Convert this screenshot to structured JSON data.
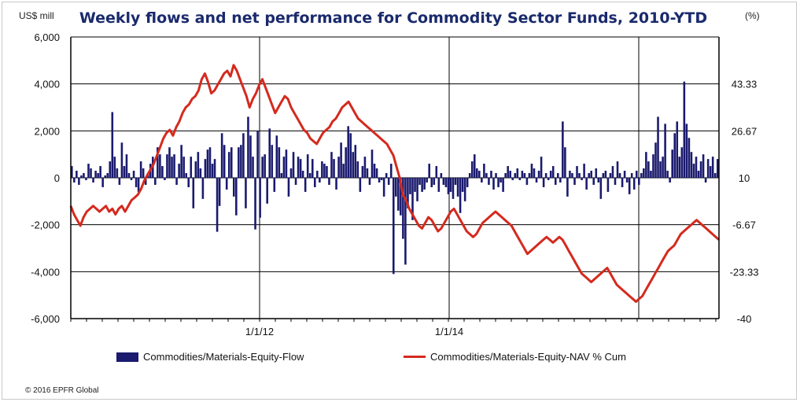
{
  "title": "Weekly flows and net performance for Commodity Sector Funds, 2010-YTD",
  "left_unit": "US$ mill",
  "right_unit": "(%)",
  "copyright": "© 2016 EPFR Global",
  "colors": {
    "bars": "#1a1a6e",
    "line": "#d42a1e",
    "grid": "#000000"
  },
  "chart_data": {
    "type": "bar+line",
    "title": "Weekly flows and net performance for Commodity Sector Funds, 2010-YTD",
    "x_ticks": [
      "1/1/12",
      "1/1/14"
    ],
    "y_left": {
      "label": "US$ mill",
      "range": [
        -6000,
        6000
      ],
      "ticks": [
        "6,000",
        "4,000",
        "2,000",
        "0",
        "-2,000",
        "-4,000",
        "-6,000"
      ]
    },
    "y_right": {
      "label": "(%)",
      "range": [
        -40,
        60
      ],
      "ticks": [
        "43.33",
        "26.67",
        "10",
        "-6.67",
        "-23.33",
        "-40"
      ]
    },
    "legend": [
      "Commodities/Materials-Equity-Flow",
      "Commodities/Materials-Equity-NAV % Cum"
    ],
    "series": [
      {
        "name": "Commodities/Materials-Equity-Flow",
        "type": "bar",
        "axis": "left",
        "values": [
          500,
          -200,
          300,
          -300,
          100,
          200,
          -100,
          600,
          400,
          -200,
          300,
          200,
          500,
          -400,
          100,
          200,
          700,
          2800,
          900,
          400,
          -300,
          1500,
          500,
          1000,
          200,
          -100,
          300,
          -400,
          -600,
          700,
          400,
          -300,
          200,
          600,
          900,
          -300,
          1300,
          1000,
          500,
          -100,
          1000,
          1300,
          900,
          1000,
          -300,
          600,
          1400,
          900,
          200,
          -400,
          900,
          -1300,
          700,
          1100,
          400,
          -900,
          800,
          1200,
          1300,
          600,
          800,
          -2300,
          -1200,
          1900,
          1400,
          -500,
          1100,
          1300,
          -800,
          -1600,
          1300,
          1400,
          1900,
          -1300,
          2600,
          1800,
          900,
          -2200,
          2000,
          -1700,
          900,
          1000,
          -1100,
          2100,
          1400,
          -600,
          1800,
          1300,
          200,
          900,
          1200,
          -800,
          400,
          1100,
          -300,
          900,
          800,
          300,
          -600,
          1000,
          200,
          800,
          -400,
          300,
          -200,
          700,
          600,
          500,
          -300,
          1100,
          800,
          -500,
          900,
          1500,
          600,
          1300,
          2200,
          1900,
          1100,
          1400,
          700,
          -600,
          500,
          900,
          400,
          -300,
          1200,
          600,
          400,
          -200,
          -100,
          -800,
          200,
          -300,
          600,
          -4100,
          -800,
          -1400,
          -1600,
          -2600,
          -3700,
          -1300,
          -700,
          -1800,
          -600,
          -1000,
          -300,
          -600,
          -500,
          -200,
          600,
          -400,
          -300,
          500,
          -600,
          200,
          -300,
          -400,
          -700,
          -600,
          -900,
          -300,
          -800,
          -1500,
          -600,
          -1000,
          -400,
          200,
          700,
          1000,
          400,
          300,
          -200,
          600,
          200,
          -300,
          300,
          -500,
          200,
          -400,
          -200,
          -600,
          200,
          500,
          300,
          -100,
          200,
          400,
          -100,
          300,
          200,
          -300,
          200,
          600,
          400,
          -200,
          300,
          900,
          -400,
          200,
          -100,
          300,
          500,
          -300,
          200,
          -200,
          2400,
          1300,
          -800,
          300,
          200,
          -300,
          500,
          200,
          -100,
          600,
          -500,
          200,
          300,
          -300,
          400,
          -200,
          -900,
          200,
          300,
          -600,
          200,
          500,
          -300,
          700,
          200,
          -400,
          300,
          -200,
          -700,
          200,
          -500,
          300,
          -300,
          200,
          400,
          1100,
          700,
          300,
          1000,
          1500,
          2600,
          700,
          900,
          2300,
          300,
          -200,
          1200,
          1900,
          2400,
          900,
          1300,
          4100,
          2300,
          1700,
          1100,
          600,
          900,
          300,
          700,
          1000,
          -200,
          800,
          500,
          900,
          200,
          800
        ],
        "width_note": "weekly bars"
      },
      {
        "name": "Commodities/Materials-Equity-NAV % Cum",
        "type": "line",
        "axis": "right",
        "values": [
          0,
          -3,
          -5,
          -7,
          -4,
          -2,
          -1,
          0,
          -1,
          -2,
          -1,
          0,
          -2,
          -1,
          -3,
          -1,
          0,
          -2,
          0,
          2,
          3,
          4,
          6,
          9,
          11,
          13,
          15,
          18,
          21,
          24,
          26,
          27,
          25,
          28,
          30,
          33,
          35,
          36,
          38,
          39,
          41,
          45,
          47,
          44,
          40,
          41,
          43,
          45,
          47,
          48,
          46,
          50,
          48,
          45,
          42,
          39,
          35,
          38,
          40,
          43,
          45,
          42,
          39,
          36,
          33,
          35,
          37,
          39,
          38,
          35,
          33,
          31,
          29,
          27,
          26,
          24,
          23,
          22,
          24,
          26,
          27,
          28,
          30,
          31,
          33,
          35,
          36,
          37,
          35,
          33,
          31,
          30,
          29,
          28,
          27,
          26,
          25,
          24,
          23,
          22,
          20,
          18,
          14,
          10,
          4,
          2,
          -1,
          -3,
          -5,
          -7,
          -8,
          -6,
          -4,
          -5,
          -7,
          -9,
          -8,
          -6,
          -4,
          -2,
          -1,
          -3,
          -5,
          -7,
          -9,
          -10,
          -11,
          -10,
          -8,
          -6,
          -5,
          -4,
          -3,
          -2,
          -3,
          -4,
          -5,
          -6,
          -7,
          -9,
          -11,
          -13,
          -15,
          -17,
          -16,
          -15,
          -14,
          -13,
          -12,
          -11,
          -12,
          -13,
          -12,
          -11,
          -12,
          -14,
          -16,
          -18,
          -20,
          -22,
          -24,
          -25,
          -26,
          -27,
          -26,
          -25,
          -24,
          -23,
          -22,
          -24,
          -26,
          -28,
          -29,
          -30,
          -31,
          -32,
          -33,
          -34,
          -33,
          -32,
          -30,
          -28,
          -26,
          -24,
          -22,
          -20,
          -18,
          -16,
          -15,
          -14,
          -12,
          -10,
          -9,
          -8,
          -7,
          -6,
          -5,
          -6,
          -7,
          -8,
          -9,
          -10,
          -11,
          -12
        ]
      }
    ]
  }
}
